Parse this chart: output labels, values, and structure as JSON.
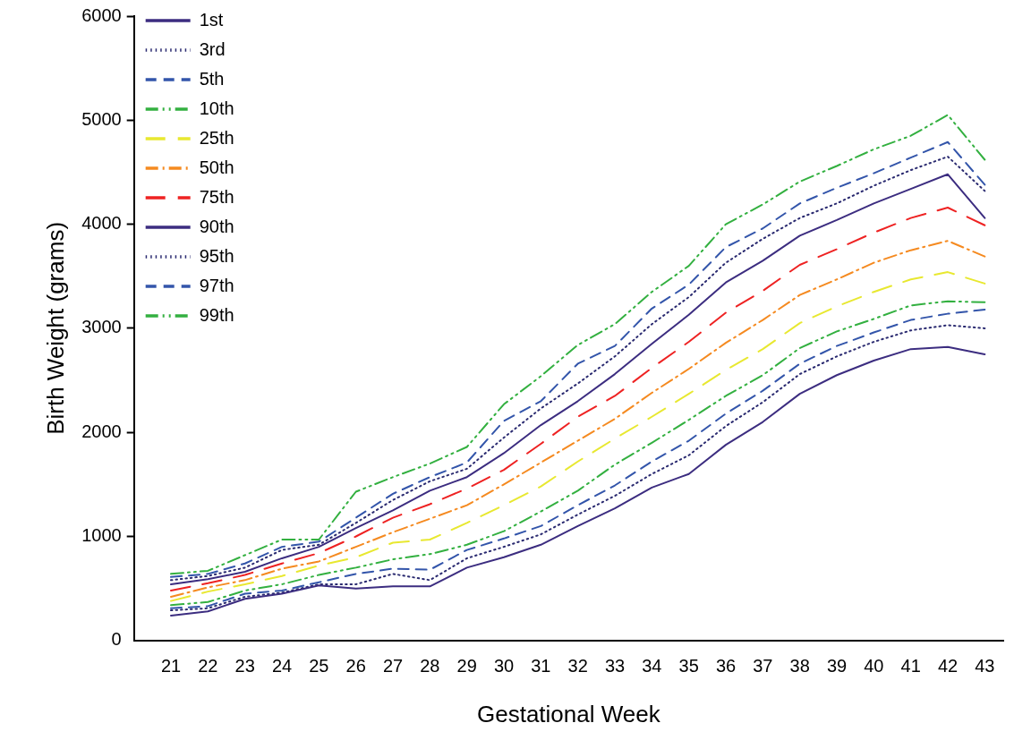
{
  "chart_data": {
    "type": "line",
    "xlabel": "Gestational Week",
    "ylabel": "Birth Weight (grams)",
    "x": [
      21,
      22,
      23,
      24,
      25,
      26,
      27,
      28,
      29,
      30,
      31,
      32,
      33,
      34,
      35,
      36,
      37,
      38,
      39,
      40,
      41,
      42,
      43
    ],
    "xlim": [
      20,
      43.5
    ],
    "xticks": [
      21,
      22,
      23,
      24,
      25,
      26,
      27,
      28,
      29,
      30,
      31,
      32,
      33,
      34,
      35,
      36,
      37,
      38,
      39,
      40,
      41,
      42,
      43
    ],
    "ylim": [
      0,
      6000
    ],
    "yticks": [
      0,
      1000,
      2000,
      3000,
      4000,
      5000,
      6000
    ],
    "grid": false,
    "legend": "top left",
    "marker": "none",
    "series": [
      {
        "name": "1st",
        "color": "#3c2d80",
        "line_style": "solid",
        "values": [
          240,
          280,
          400,
          450,
          530,
          500,
          520,
          520,
          700,
          800,
          920,
          1100,
          1270,
          1470,
          1600,
          1880,
          2100,
          2370,
          2550,
          2690,
          2800,
          2820,
          2750
        ]
      },
      {
        "name": "3rd",
        "color": "#2a2a70",
        "line_style": "dotted",
        "values": [
          290,
          310,
          420,
          460,
          540,
          540,
          640,
          580,
          790,
          900,
          1020,
          1210,
          1390,
          1600,
          1780,
          2060,
          2290,
          2560,
          2730,
          2870,
          2980,
          3030,
          3000
        ]
      },
      {
        "name": "5th",
        "color": "#3355aa",
        "line_style": "dashed",
        "values": [
          310,
          330,
          450,
          480,
          560,
          640,
          690,
          680,
          870,
          980,
          1100,
          1300,
          1490,
          1720,
          1920,
          2180,
          2400,
          2660,
          2830,
          2960,
          3080,
          3140,
          3180
        ]
      },
      {
        "name": "10th",
        "color": "#33b040",
        "line_style": "dashdotdot",
        "values": [
          340,
          370,
          480,
          540,
          630,
          700,
          780,
          830,
          920,
          1050,
          1240,
          1440,
          1690,
          1900,
          2120,
          2350,
          2550,
          2810,
          2970,
          3090,
          3220,
          3260,
          3250
        ]
      },
      {
        "name": "25th",
        "color": "#e8e830",
        "line_style": "longdash",
        "values": [
          380,
          470,
          540,
          620,
          720,
          800,
          940,
          970,
          1130,
          1300,
          1480,
          1720,
          1940,
          2150,
          2370,
          2600,
          2800,
          3050,
          3210,
          3350,
          3470,
          3540,
          3430
        ]
      },
      {
        "name": "50th",
        "color": "#f58a20",
        "line_style": "dashdot",
        "values": [
          420,
          510,
          580,
          690,
          760,
          900,
          1040,
          1170,
          1300,
          1500,
          1710,
          1920,
          2130,
          2380,
          2610,
          2860,
          3080,
          3320,
          3470,
          3630,
          3750,
          3840,
          3690
        ]
      },
      {
        "name": "75th",
        "color": "#ee2222",
        "line_style": "longdash",
        "values": [
          480,
          550,
          630,
          740,
          840,
          1000,
          1180,
          1310,
          1460,
          1640,
          1890,
          2150,
          2350,
          2620,
          2870,
          3150,
          3360,
          3610,
          3760,
          3920,
          4060,
          4160,
          3990
        ]
      },
      {
        "name": "90th",
        "color": "#3c2d80",
        "line_style": "solid",
        "values": [
          540,
          590,
          660,
          790,
          900,
          1080,
          1250,
          1440,
          1570,
          1800,
          2070,
          2300,
          2560,
          2850,
          3130,
          3440,
          3650,
          3890,
          4040,
          4200,
          4340,
          4480,
          4060
        ]
      },
      {
        "name": "95th",
        "color": "#2a2a70",
        "line_style": "dotted",
        "values": [
          580,
          620,
          700,
          870,
          920,
          1130,
          1350,
          1530,
          1650,
          1950,
          2230,
          2470,
          2730,
          3040,
          3300,
          3630,
          3860,
          4060,
          4200,
          4370,
          4520,
          4650,
          4320
        ]
      },
      {
        "name": "97th",
        "color": "#3355aa",
        "line_style": "dashed",
        "values": [
          610,
          640,
          740,
          900,
          950,
          1180,
          1410,
          1570,
          1710,
          2110,
          2300,
          2660,
          2830,
          3190,
          3420,
          3780,
          3960,
          4200,
          4350,
          4490,
          4640,
          4790,
          4380
        ]
      },
      {
        "name": "99th",
        "color": "#33b040",
        "line_style": "dashdotdot",
        "values": [
          640,
          670,
          820,
          970,
          970,
          1430,
          1570,
          1700,
          1860,
          2270,
          2540,
          2840,
          3040,
          3350,
          3600,
          4000,
          4190,
          4410,
          4560,
          4720,
          4850,
          5050,
          4620
        ]
      }
    ]
  }
}
